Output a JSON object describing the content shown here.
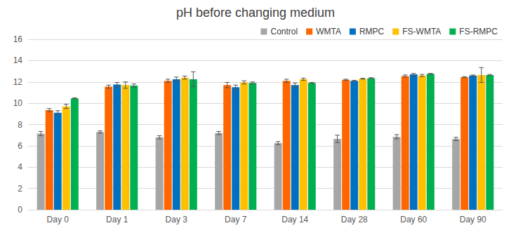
{
  "chart_data": {
    "type": "bar",
    "title": "pH before changing medium",
    "categories": [
      "Day 0",
      "Day 1",
      "Day 3",
      "Day 7",
      "Day 14",
      "Day 28",
      "Day 60",
      "Day 90"
    ],
    "series": [
      {
        "name": "Control",
        "color": "#a6a6a6",
        "values": [
          7.15,
          7.3,
          6.8,
          7.2,
          6.25,
          6.65,
          6.85,
          6.65
        ],
        "errors": [
          0.2,
          0.1,
          0.15,
          0.15,
          0.15,
          0.35,
          0.2,
          0.15
        ]
      },
      {
        "name": "WMTA",
        "color": "#ff6600",
        "values": [
          9.35,
          11.55,
          12.1,
          11.7,
          12.1,
          12.2,
          12.55,
          12.45
        ],
        "errors": [
          0.15,
          0.15,
          0.15,
          0.25,
          0.15,
          0.05,
          0.1,
          0.05
        ]
      },
      {
        "name": "RMPC",
        "color": "#0070c0",
        "values": [
          9.1,
          11.75,
          12.25,
          11.5,
          11.7,
          12.1,
          12.7,
          12.6
        ],
        "errors": [
          0.2,
          0.2,
          0.2,
          0.2,
          0.2,
          0.05,
          0.1,
          0.05
        ]
      },
      {
        "name": "FS-WMTA",
        "color": "#ffc000",
        "values": [
          9.7,
          11.7,
          12.4,
          11.95,
          12.25,
          12.3,
          12.6,
          12.65
        ],
        "errors": [
          0.2,
          0.3,
          0.15,
          0.15,
          0.1,
          0.05,
          0.1,
          0.7
        ]
      },
      {
        "name": "FS-RMPC",
        "color": "#00b050",
        "values": [
          10.45,
          11.65,
          12.25,
          11.9,
          11.9,
          12.35,
          12.75,
          12.65
        ],
        "errors": [
          0.05,
          0.15,
          0.7,
          0.1,
          0.05,
          0.05,
          0.05,
          0.05
        ]
      }
    ],
    "ylim": [
      0,
      16
    ],
    "yticks": [
      0,
      2,
      4,
      6,
      8,
      10,
      12,
      14,
      16
    ],
    "grid": true,
    "legend": "top-right"
  }
}
